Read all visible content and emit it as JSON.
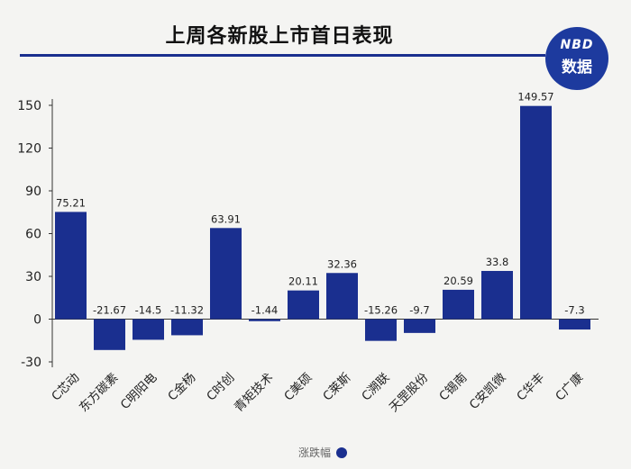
{
  "header": {
    "title": "上周各新股上市首日表现"
  },
  "logo": {
    "line1": "NBD",
    "line2": "数据"
  },
  "chart_data": {
    "type": "bar",
    "title": "上周各新股上市首日表现",
    "categories": [
      "C芯动",
      "东方碳素",
      "C明阳电",
      "C金杨",
      "C时创",
      "青矩技术",
      "C美硕",
      "C莱斯",
      "C溯联",
      "天罡股份",
      "C锡南",
      "C安凯微",
      "C华丰",
      "C广康"
    ],
    "series": [
      {
        "name": "涨跌幅",
        "values": [
          75.21,
          -21.67,
          -14.5,
          -11.32,
          63.91,
          -1.44,
          20.11,
          32.36,
          -15.26,
          -9.7,
          20.59,
          33.8,
          149.57,
          -7.3
        ],
        "labels": [
          "75.21",
          "-21.67",
          "-14.5",
          "-11.32",
          "63.91",
          "-1.44",
          "20.11",
          "32.36",
          "-15.26",
          "-9.7",
          "20.59",
          "33.8",
          "149.57",
          "-7.3"
        ]
      }
    ],
    "yticks": [
      150,
      120,
      90,
      60,
      30,
      0,
      -30
    ],
    "ylim": [
      -30,
      150
    ],
    "grid": false,
    "legend_position": "bottom-center",
    "xlabel": "",
    "ylabel": ""
  },
  "colors": {
    "bar": "#1a2f8f",
    "title_rule": "#1a2f8f",
    "logo": "#1d3a9e"
  }
}
